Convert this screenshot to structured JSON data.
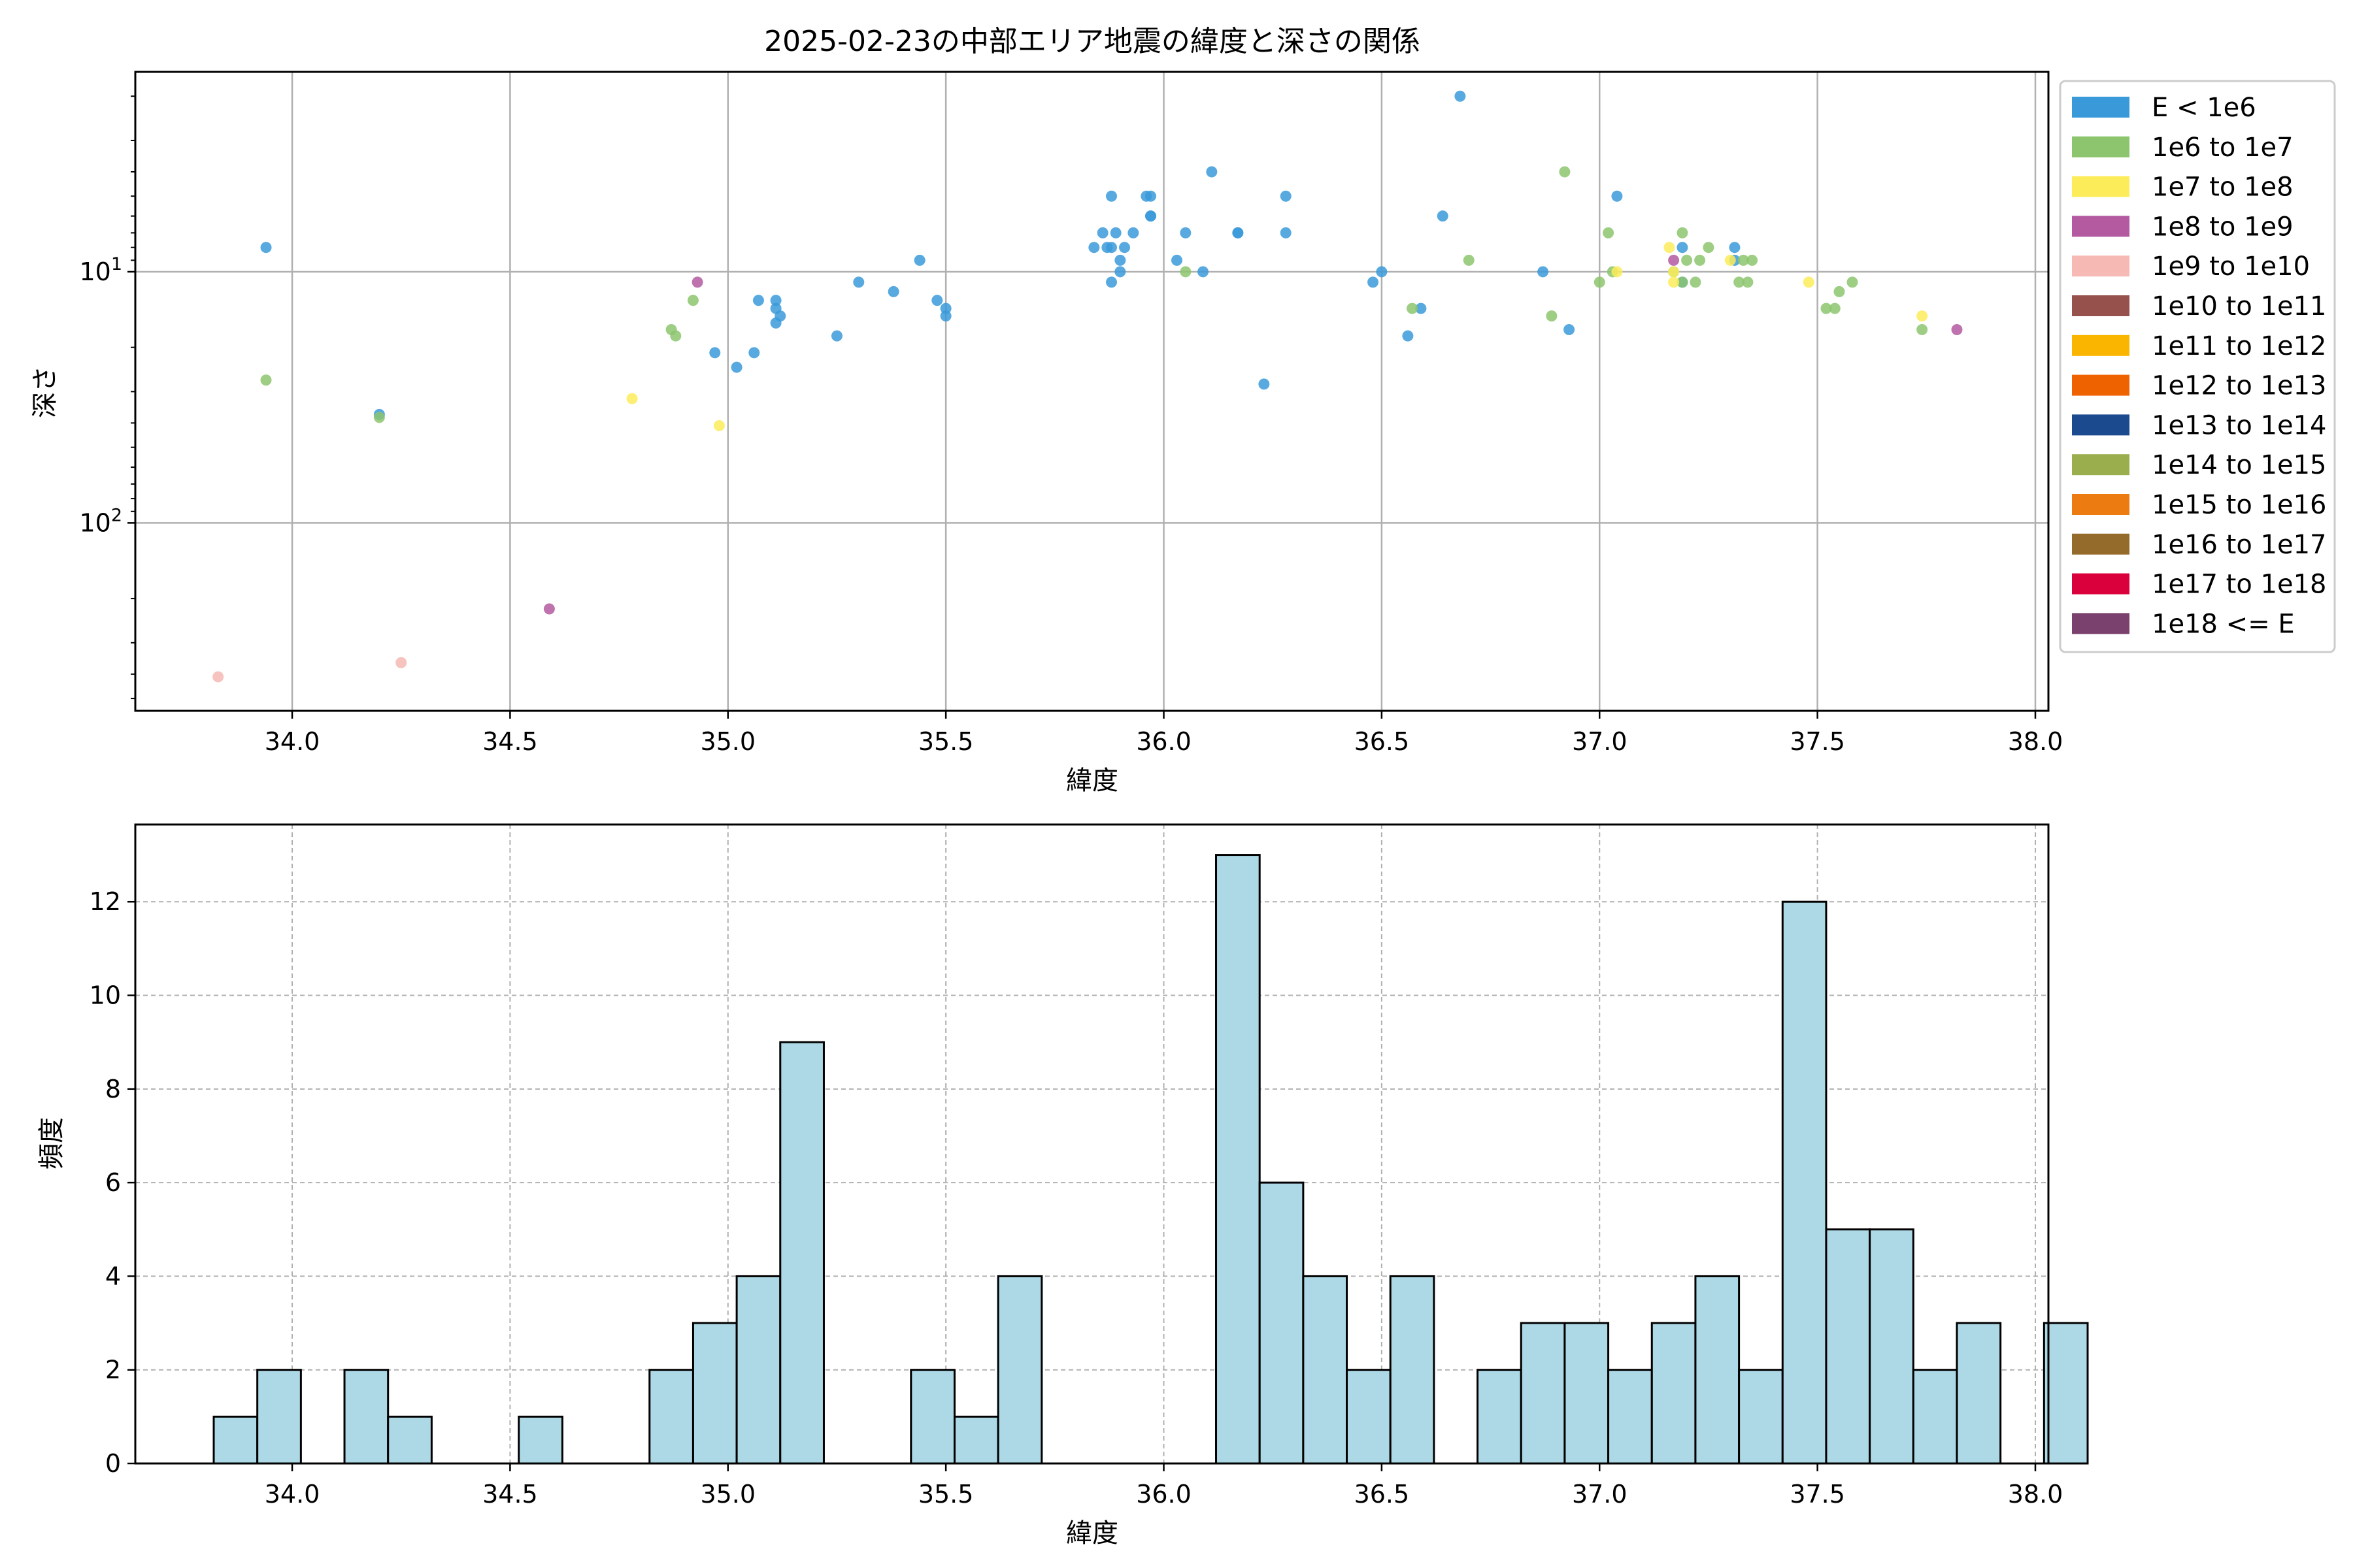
{
  "figure": {
    "title": "2025-02-23の中部エリア地震の緯度と深さの関係"
  },
  "chart_data": [
    {
      "type": "scatter",
      "title": "2025-02-23の中部エリア地震の緯度と深さの関係",
      "xlabel": "緯度",
      "ylabel": "深さ",
      "xlim": [
        33.64,
        38.03
      ],
      "ylim": [
        560,
        1.6
      ],
      "y_scale": "log-inverted",
      "grid": true,
      "legend_position": "outside-right",
      "x_ticks": [
        "34.0",
        "34.5",
        "35.0",
        "35.5",
        "36.0",
        "36.5",
        "37.0",
        "37.5",
        "38.0"
      ],
      "y_ticks": [
        {
          "value": 10,
          "base": "10",
          "exp": "1"
        },
        {
          "value": 100,
          "base": "10",
          "exp": "2"
        }
      ],
      "legend": [
        {
          "label": "E < 1e6",
          "color": "#3a9ad9"
        },
        {
          "label": "1e6 to 1e7",
          "color": "#8cc56e"
        },
        {
          "label": "1e7 to 1e8",
          "color": "#fcec5a"
        },
        {
          "label": "1e8 to 1e9",
          "color": "#b35aa1"
        },
        {
          "label": "1e9 to 1e10",
          "color": "#f6b9b3"
        },
        {
          "label": "1e10 to 1e11",
          "color": "#97514c"
        },
        {
          "label": "1e11 to 1e12",
          "color": "#f9b500"
        },
        {
          "label": "1e12 to 1e13",
          "color": "#ef6200"
        },
        {
          "label": "1e13 to 1e14",
          "color": "#1b4a8f"
        },
        {
          "label": "1e14 to 1e15",
          "color": "#9aae4e"
        },
        {
          "label": "1e15 to 1e16",
          "color": "#ec7b12"
        },
        {
          "label": "1e16 to 1e17",
          "color": "#946b2a"
        },
        {
          "label": "1e17 to 1e18",
          "color": "#d9003b"
        },
        {
          "label": "1e18 <= E",
          "color": "#7a416e"
        }
      ],
      "series": [
        {
          "name": "E < 1e6",
          "points": [
            [
              33.94,
              8
            ],
            [
              34.2,
              37
            ],
            [
              34.97,
              21
            ],
            [
              35.02,
              24
            ],
            [
              35.06,
              21
            ],
            [
              35.07,
              13
            ],
            [
              35.11,
              16
            ],
            [
              35.11,
              14
            ],
            [
              35.11,
              13
            ],
            [
              35.12,
              15
            ],
            [
              35.25,
              18
            ],
            [
              35.3,
              11
            ],
            [
              35.38,
              12
            ],
            [
              35.44,
              9
            ],
            [
              35.48,
              13
            ],
            [
              35.5,
              14
            ],
            [
              35.5,
              15
            ],
            [
              35.84,
              8
            ],
            [
              35.86,
              7
            ],
            [
              35.87,
              8
            ],
            [
              35.88,
              5
            ],
            [
              35.88,
              11
            ],
            [
              35.88,
              8
            ],
            [
              35.89,
              7
            ],
            [
              35.9,
              9
            ],
            [
              35.9,
              10
            ],
            [
              35.91,
              8
            ],
            [
              35.93,
              7
            ],
            [
              35.96,
              5
            ],
            [
              35.97,
              6
            ],
            [
              35.97,
              6
            ],
            [
              35.97,
              5
            ],
            [
              36.03,
              9
            ],
            [
              36.05,
              7
            ],
            [
              36.09,
              10
            ],
            [
              36.11,
              4
            ],
            [
              36.17,
              7
            ],
            [
              36.17,
              7
            ],
            [
              36.23,
              28
            ],
            [
              36.28,
              7
            ],
            [
              36.28,
              5
            ],
            [
              36.48,
              11
            ],
            [
              36.5,
              10
            ],
            [
              36.56,
              18
            ],
            [
              36.59,
              14
            ],
            [
              36.64,
              6
            ],
            [
              36.68,
              2
            ],
            [
              36.87,
              10
            ],
            [
              36.93,
              17
            ],
            [
              37.04,
              5
            ],
            [
              37.19,
              8
            ],
            [
              37.19,
              11
            ],
            [
              37.31,
              8
            ],
            [
              37.31,
              9
            ]
          ]
        },
        {
          "name": "1e6 to 1e7",
          "points": [
            [
              33.94,
              27
            ],
            [
              34.2,
              38
            ],
            [
              34.87,
              17
            ],
            [
              34.88,
              18
            ],
            [
              34.92,
              13
            ],
            [
              36.05,
              10
            ],
            [
              36.57,
              14
            ],
            [
              36.7,
              9
            ],
            [
              36.89,
              15
            ],
            [
              36.92,
              4
            ],
            [
              37.0,
              11
            ],
            [
              37.02,
              7
            ],
            [
              37.03,
              10
            ],
            [
              37.17,
              10
            ],
            [
              37.19,
              7
            ],
            [
              37.19,
              11
            ],
            [
              37.2,
              9
            ],
            [
              37.22,
              11
            ],
            [
              37.23,
              9
            ],
            [
              37.25,
              8
            ],
            [
              37.32,
              11
            ],
            [
              37.33,
              9
            ],
            [
              37.34,
              11
            ],
            [
              37.35,
              9
            ],
            [
              37.52,
              14
            ],
            [
              37.54,
              14
            ],
            [
              37.55,
              12
            ],
            [
              37.58,
              11
            ],
            [
              37.74,
              17
            ]
          ]
        },
        {
          "name": "1e7 to 1e8",
          "points": [
            [
              34.78,
              32
            ],
            [
              34.98,
              41
            ],
            [
              37.04,
              10
            ],
            [
              37.16,
              8
            ],
            [
              37.17,
              11
            ],
            [
              37.17,
              10
            ],
            [
              37.3,
              9
            ],
            [
              37.48,
              11
            ],
            [
              37.74,
              15
            ]
          ]
        },
        {
          "name": "1e8 to 1e9",
          "points": [
            [
              34.59,
              220
            ],
            [
              34.93,
              11
            ],
            [
              37.17,
              9
            ],
            [
              37.82,
              17
            ]
          ]
        },
        {
          "name": "1e9 to 1e10",
          "points": [
            [
              33.83,
              410
            ],
            [
              34.25,
              360
            ]
          ]
        }
      ]
    },
    {
      "type": "bar",
      "title": "",
      "xlabel": "緯度",
      "ylabel": "頻度",
      "xlim": [
        33.64,
        38.03
      ],
      "ylim": [
        0,
        13.65
      ],
      "grid": true,
      "bar_color": "#add8e6",
      "edge_color": "#000000",
      "bin_start": 33.82,
      "bin_width": 0.1,
      "counts": [
        1,
        2,
        0,
        2,
        1,
        0,
        0,
        1,
        0,
        0,
        2,
        3,
        4,
        9,
        0,
        0,
        2,
        1,
        4,
        0,
        0,
        0,
        0,
        13,
        6,
        4,
        2,
        4,
        0,
        2,
        3,
        3,
        2,
        3,
        4,
        2,
        12,
        5,
        5,
        2,
        3,
        0,
        3
      ],
      "x_ticks": [
        "34.0",
        "34.5",
        "35.0",
        "35.5",
        "36.0",
        "36.5",
        "37.0",
        "37.5",
        "38.0"
      ],
      "y_ticks": [
        "0",
        "2",
        "4",
        "6",
        "8",
        "10",
        "12"
      ]
    }
  ]
}
